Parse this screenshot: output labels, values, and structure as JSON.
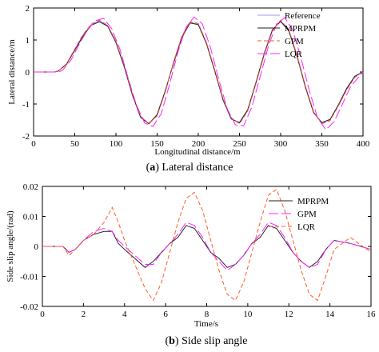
{
  "colors": {
    "reference": "#9999ff",
    "mprpm": "#222222",
    "gpm": "#ff22ff",
    "lqr": "#ff5a2a"
  },
  "captions": [
    {
      "label": "a",
      "text": ") Lateral distance"
    },
    {
      "label": "b",
      "text": ") Side slip angle"
    }
  ],
  "chart_data": [
    {
      "type": "line",
      "xlabel": "Longitudinal distance/m",
      "ylabel": "Lateral distance/m",
      "xlim": [
        0,
        400
      ],
      "ylim": [
        -2,
        2
      ],
      "xticks": [
        0,
        50,
        100,
        150,
        200,
        250,
        300,
        350,
        400
      ],
      "yticks": [
        -2,
        -1,
        0,
        1,
        2
      ],
      "grid": false,
      "legend_position": "top-right",
      "series": [
        {
          "name": "Reference",
          "color_key": "reference",
          "dash": "",
          "x": [
            0,
            25,
            30,
            40,
            50,
            60,
            70,
            80,
            90,
            100,
            110,
            120,
            130,
            140,
            150,
            160,
            170,
            180,
            190,
            200,
            210,
            220,
            230,
            240,
            250,
            260,
            270,
            280,
            290,
            300,
            310,
            320,
            330,
            340,
            350,
            360,
            370,
            380,
            390,
            400
          ],
          "y": [
            0,
            0,
            0.03,
            0.25,
            0.7,
            1.15,
            1.48,
            1.6,
            1.45,
            0.95,
            0.2,
            -0.7,
            -1.4,
            -1.6,
            -1.35,
            -0.6,
            0.3,
            1.1,
            1.55,
            1.5,
            0.9,
            0.05,
            -0.85,
            -1.45,
            -1.6,
            -1.2,
            -0.35,
            0.55,
            1.3,
            1.6,
            1.3,
            0.5,
            -0.45,
            -1.25,
            -1.6,
            -1.5,
            -1.05,
            -0.55,
            -0.15,
            0
          ]
        },
        {
          "name": "MPRPM",
          "color_key": "mprpm",
          "dash": "",
          "x": [
            0,
            25,
            30,
            40,
            50,
            60,
            70,
            80,
            90,
            100,
            110,
            120,
            130,
            140,
            150,
            160,
            170,
            180,
            190,
            200,
            210,
            220,
            230,
            240,
            250,
            260,
            270,
            280,
            290,
            300,
            310,
            320,
            330,
            340,
            350,
            360,
            370,
            380,
            390,
            400
          ],
          "y": [
            0,
            0,
            0.03,
            0.24,
            0.68,
            1.12,
            1.46,
            1.57,
            1.43,
            0.92,
            0.17,
            -0.72,
            -1.42,
            -1.62,
            -1.33,
            -0.58,
            0.28,
            1.08,
            1.53,
            1.48,
            0.88,
            0.03,
            -0.87,
            -1.47,
            -1.58,
            -1.18,
            -0.33,
            0.57,
            1.32,
            1.58,
            1.28,
            0.48,
            -0.47,
            -1.27,
            -1.58,
            -1.48,
            -1.03,
            -0.52,
            -0.13,
            0
          ]
        },
        {
          "name": "GPM",
          "color_key": "lqr",
          "dash": "5,3",
          "x": [
            0,
            25,
            30,
            40,
            50,
            60,
            70,
            80,
            90,
            100,
            110,
            120,
            130,
            140,
            150,
            160,
            170,
            180,
            190,
            200,
            210,
            220,
            230,
            240,
            250,
            260,
            270,
            280,
            290,
            300,
            310,
            320,
            330,
            340,
            350,
            360,
            370,
            380,
            390,
            400
          ],
          "y": [
            0,
            0,
            0.03,
            0.26,
            0.72,
            1.17,
            1.5,
            1.62,
            1.46,
            0.96,
            0.22,
            -0.68,
            -1.38,
            -1.62,
            -1.37,
            -0.62,
            0.32,
            1.12,
            1.57,
            1.52,
            0.92,
            0.07,
            -0.83,
            -1.43,
            -1.62,
            -1.22,
            -0.37,
            0.53,
            1.28,
            1.62,
            1.32,
            0.52,
            -0.43,
            -1.23,
            -1.62,
            -1.52,
            -1.07,
            -0.57,
            -0.17,
            0
          ]
        },
        {
          "name": "LQR",
          "color_key": "gpm",
          "dash": "12,4",
          "x": [
            0,
            30,
            35,
            45,
            55,
            65,
            75,
            85,
            95,
            105,
            115,
            125,
            135,
            145,
            155,
            165,
            175,
            185,
            195,
            205,
            215,
            225,
            235,
            245,
            255,
            265,
            275,
            285,
            295,
            305,
            315,
            325,
            335,
            345,
            355,
            365,
            375,
            385,
            400
          ],
          "y": [
            0,
            0,
            0.05,
            0.35,
            0.85,
            1.3,
            1.6,
            1.68,
            1.35,
            0.7,
            -0.2,
            -1.05,
            -1.6,
            -1.7,
            -1.3,
            -0.4,
            0.6,
            1.4,
            1.72,
            1.5,
            0.75,
            -0.25,
            -1.15,
            -1.65,
            -1.68,
            -1.1,
            -0.15,
            0.8,
            1.5,
            1.7,
            1.3,
            0.4,
            -0.6,
            -1.45,
            -1.8,
            -1.55,
            -1.0,
            -0.45,
            0
          ]
        }
      ]
    },
    {
      "type": "line",
      "xlabel": "Time/s",
      "ylabel": "Side slip angle/(rad)",
      "xlim": [
        0,
        16
      ],
      "ylim": [
        -0.02,
        0.02
      ],
      "xticks": [
        0,
        2,
        4,
        6,
        8,
        10,
        12,
        14,
        16
      ],
      "yticks": [
        -0.02,
        -0.01,
        0,
        0.01,
        0.02
      ],
      "ytick_labels": [
        "-0.02",
        "-0.01",
        "0",
        "0.01",
        "0.02"
      ],
      "grid": false,
      "legend_position": "top-right",
      "series": [
        {
          "name": "MPRPM",
          "color_key": "mprpm",
          "dash": "",
          "x": [
            0,
            1.0,
            1.3,
            1.6,
            2.0,
            2.5,
            3.0,
            3.4,
            3.7,
            4.0,
            4.5,
            5.0,
            5.4,
            5.8,
            6.2,
            6.6,
            7.0,
            7.4,
            7.8,
            8.2,
            8.6,
            9.0,
            9.4,
            9.8,
            10.2,
            10.6,
            11.0,
            11.4,
            11.8,
            12.2,
            12.6,
            13.0,
            13.4,
            13.8,
            14.2,
            15.0,
            16
          ],
          "y": [
            0,
            0,
            -0.002,
            -0.001,
            0.002,
            0.004,
            0.005,
            0.005,
            0.001,
            -0.001,
            -0.004,
            -0.007,
            -0.005,
            -0.002,
            0.001,
            0.003,
            0.007,
            0.006,
            0.002,
            -0.002,
            -0.004,
            -0.007,
            -0.006,
            -0.003,
            0.001,
            0.003,
            0.007,
            0.006,
            0.002,
            -0.002,
            -0.005,
            -0.007,
            -0.005,
            -0.001,
            0.002,
            0.001,
            -0.001
          ]
        },
        {
          "name": "GPM",
          "color_key": "gpm",
          "dash": "12,4",
          "x": [
            0,
            1.0,
            1.3,
            1.6,
            2.0,
            2.5,
            3.0,
            3.4,
            3.7,
            4.0,
            4.5,
            5.0,
            5.4,
            5.8,
            6.2,
            6.6,
            7.0,
            7.4,
            7.8,
            8.2,
            8.6,
            9.0,
            9.4,
            9.8,
            10.2,
            10.6,
            11.0,
            11.4,
            11.8,
            12.2,
            12.6,
            13.0,
            13.4,
            13.8,
            14.2,
            15.0,
            16
          ],
          "y": [
            0,
            0,
            -0.002,
            -0.001,
            0.002,
            0.005,
            0.006,
            0.005,
            0.002,
            0,
            -0.003,
            -0.006,
            -0.006,
            -0.002,
            0.001,
            0.004,
            0.008,
            0.007,
            0.003,
            -0.002,
            -0.005,
            -0.008,
            -0.006,
            -0.003,
            0.001,
            0.004,
            0.008,
            0.007,
            0.003,
            -0.002,
            -0.005,
            -0.007,
            -0.006,
            -0.001,
            0.002,
            0.001,
            -0.001
          ]
        },
        {
          "name": "LQR",
          "color_key": "lqr",
          "dash": "5,3",
          "x": [
            0,
            1.0,
            1.3,
            1.6,
            2.0,
            2.5,
            3.0,
            3.4,
            3.7,
            4.0,
            4.5,
            5.0,
            5.4,
            5.8,
            6.2,
            6.6,
            7.0,
            7.4,
            7.8,
            8.2,
            8.6,
            9.0,
            9.4,
            9.8,
            10.2,
            10.6,
            11.0,
            11.4,
            11.8,
            12.2,
            12.6,
            13.0,
            13.4,
            13.8,
            14.2,
            15.0,
            16
          ],
          "y": [
            0,
            0,
            -0.003,
            -0.001,
            0.002,
            0.004,
            0.008,
            0.013,
            0.008,
            0.002,
            -0.006,
            -0.014,
            -0.018,
            -0.012,
            -0.002,
            0.008,
            0.016,
            0.018,
            0.012,
            0.002,
            -0.008,
            -0.016,
            -0.018,
            -0.012,
            -0.002,
            0.008,
            0.017,
            0.019,
            0.012,
            0.002,
            -0.008,
            -0.016,
            -0.018,
            -0.01,
            -0.001,
            0.003,
            -0.002
          ]
        }
      ]
    }
  ]
}
